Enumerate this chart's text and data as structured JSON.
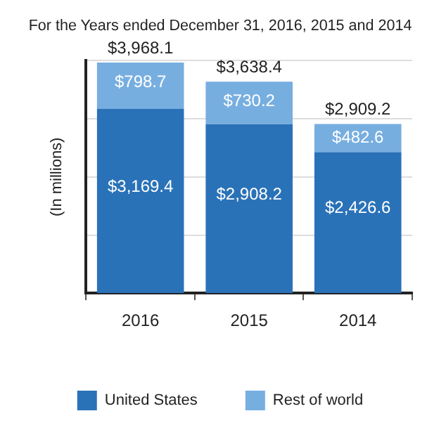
{
  "chart_data": {
    "type": "bar",
    "title": "For the Years ended December 31, 2016, 2015 and 2014",
    "ylabel": "(In millions)",
    "categories": [
      "2016",
      "2015",
      "2014"
    ],
    "stacked": true,
    "series": [
      {
        "name": "United States",
        "color": "#2a72b8",
        "values": [
          3169.4,
          2908.2,
          2426.6
        ],
        "value_labels": [
          "$3,169.4",
          "$2,908.2",
          "$2,426.6"
        ]
      },
      {
        "name": "Rest of world",
        "color": "#77aee0",
        "values": [
          798.7,
          730.2,
          482.6
        ],
        "value_labels": [
          "$798.7",
          "$730.2",
          "$482.6"
        ]
      }
    ],
    "totals": [
      "$3,968.1",
      "$3,638.4",
      "$2,909.2"
    ],
    "ylim": [
      0,
      4000
    ],
    "yticks": [
      {
        "value": 1000,
        "label": null
      },
      {
        "value": 2000,
        "label": null
      },
      {
        "value": 3000,
        "label": null
      },
      {
        "value": 4000,
        "label": null
      }
    ],
    "tick_labels": "x",
    "grid": "y",
    "legend": "bottom"
  }
}
